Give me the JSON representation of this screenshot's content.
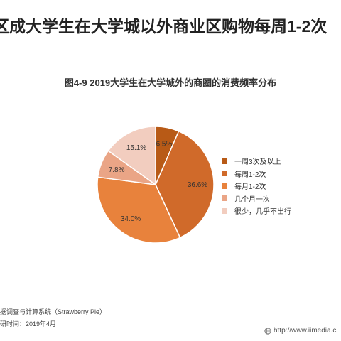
{
  "page": {
    "headline": "区成大学生在大学城以外商业区购物每周1-2次",
    "source_line1": "据调查与计算系统（Strawberry Pie）",
    "source_line2": "研时间：2019年4月",
    "watermark_url": "http://www.iimedia.c"
  },
  "chart_data": {
    "type": "pie",
    "title": "图4-9 2019大学生在大学城外的商圈的消费频率分布",
    "slices": [
      {
        "label": "一周3次及以上",
        "value": 6.5,
        "display": "6.5%",
        "color": "#b85a16"
      },
      {
        "label": "每周1-2次",
        "value": 36.6,
        "display": "36.6%",
        "color": "#d06a2a"
      },
      {
        "label": "每月1-2次",
        "value": 34.0,
        "display": "34.0%",
        "color": "#e8823c"
      },
      {
        "label": "几个月一次",
        "value": 7.8,
        "display": "7.8%",
        "color": "#eaa586"
      },
      {
        "label": "很少，几乎不出行",
        "value": 15.1,
        "display": "15.1%",
        "color": "#f2cdbf"
      }
    ],
    "legend_position": "right"
  }
}
